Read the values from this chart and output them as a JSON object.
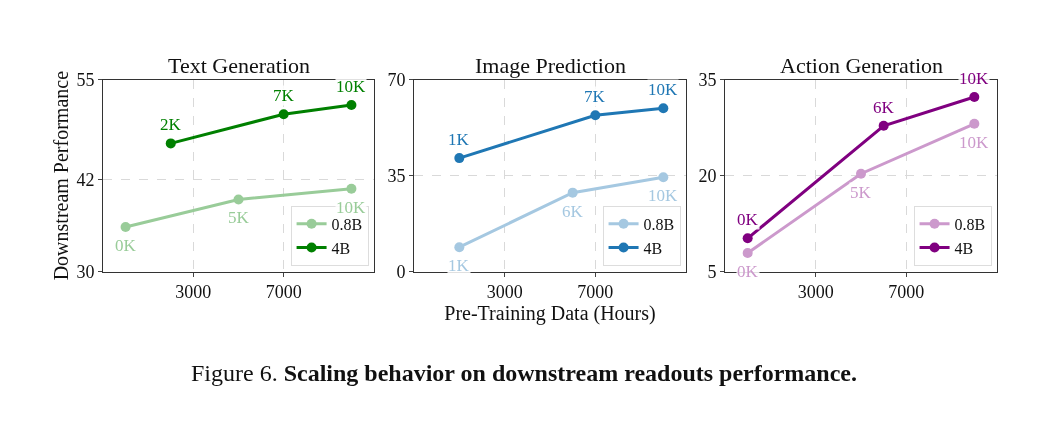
{
  "chart_data": [
    {
      "type": "line",
      "title": "Text Generation",
      "ylabel": "Downstream Performance",
      "xlim": [
        -1000,
        11000
      ],
      "xticks": [
        3000,
        7000
      ],
      "ylim": [
        30,
        55
      ],
      "yticks": [
        30,
        42,
        55
      ],
      "grid": true,
      "legend": "bottom right",
      "marker": "circle",
      "line_style": "solid",
      "annotations": [
        {
          "text": "0K",
          "x": 0,
          "y": 35.8
        },
        {
          "text": "5K",
          "x": 5000,
          "y": 39.4
        },
        {
          "text": "10K",
          "x": 10000,
          "y": 40.8
        },
        {
          "text": "2K",
          "x": 2000,
          "y": 46.7
        },
        {
          "text": "7K",
          "x": 7000,
          "y": 50.5
        },
        {
          "text": "10K",
          "x": 10000,
          "y": 51.7
        }
      ],
      "series": [
        {
          "name": "0.8B",
          "color": "#99cc99",
          "x": [
            0,
            5000,
            10000
          ],
          "values": [
            35.8,
            39.4,
            40.8
          ]
        },
        {
          "name": "4B",
          "color": "#008000",
          "x": [
            2000,
            7000,
            10000
          ],
          "values": [
            46.7,
            50.5,
            51.7
          ]
        }
      ]
    },
    {
      "type": "line",
      "title": "Image Prediction",
      "xlabel": "Pre-Training Data (Hours)",
      "xlim": [
        -1000,
        11000
      ],
      "xticks": [
        3000,
        7000
      ],
      "ylim": [
        0,
        70
      ],
      "yticks": [
        0,
        35,
        70
      ],
      "grid": true,
      "legend": "bottom right",
      "marker": "circle",
      "line_style": "solid",
      "annotations": [
        {
          "text": "1K",
          "x": 1000,
          "y": 8.9
        },
        {
          "text": "6K",
          "x": 6000,
          "y": 28.8
        },
        {
          "text": "10K",
          "x": 10000,
          "y": 34.4
        },
        {
          "text": "1K",
          "x": 1000,
          "y": 41.4
        },
        {
          "text": "7K",
          "x": 7000,
          "y": 57.0
        },
        {
          "text": "10K",
          "x": 10000,
          "y": 59.6
        },
        "Figure 6.",
        "Scaling behavior on downstream readouts performance."
      ],
      "series": [
        {
          "name": "0.8B",
          "color": "#a5c8e1",
          "x": [
            1000,
            6000,
            10000
          ],
          "values": [
            8.9,
            28.8,
            34.4
          ]
        },
        {
          "name": "4B",
          "color": "#1f77b4",
          "x": [
            1000,
            7000,
            10000
          ],
          "values": [
            41.4,
            57.0,
            59.6
          ]
        }
      ]
    },
    {
      "type": "line",
      "title": "Action Generation",
      "xlim": [
        -1000,
        11000
      ],
      "xticks": [
        3000,
        7000
      ],
      "ylim": [
        5,
        35
      ],
      "yticks": [
        5,
        20,
        35
      ],
      "grid": true,
      "legend": "bottom right",
      "marker": "circle",
      "line_style": "solid",
      "annotations": [
        {
          "text": "0K",
          "x": 0,
          "y": 7.9
        },
        {
          "text": "5K",
          "x": 5000,
          "y": 20.3
        },
        {
          "text": "10K",
          "x": 10000,
          "y": 28.1
        },
        {
          "text": "0K",
          "x": 0,
          "y": 10.2
        },
        {
          "text": "6K",
          "x": 6000,
          "y": 27.8
        },
        {
          "text": "10K",
          "x": 10000,
          "y": 32.3
        }
      ],
      "series": [
        {
          "name": "0.8B",
          "color": "#cc99cc",
          "x": [
            0,
            5000,
            10000
          ],
          "values": [
            7.9,
            20.3,
            28.1
          ]
        },
        {
          "name": "4B",
          "color": "#800080",
          "x": [
            0,
            6000,
            10000
          ],
          "values": [
            10.2,
            27.8,
            32.3
          ]
        }
      ]
    }
  ]
}
